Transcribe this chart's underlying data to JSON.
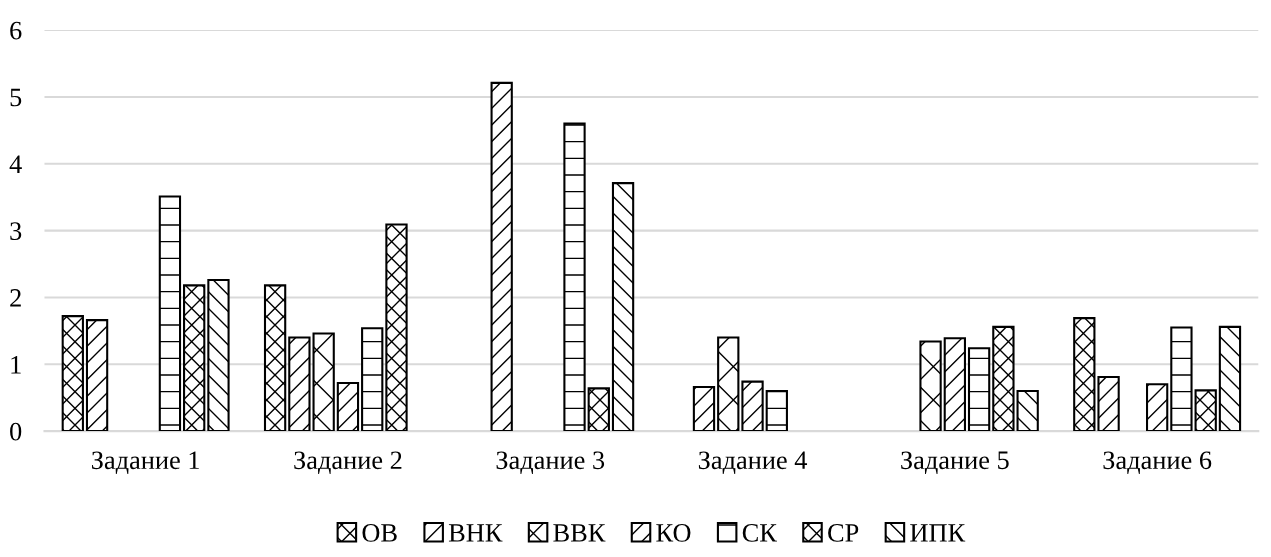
{
  "chart_data": {
    "type": "bar",
    "categories": [
      "Задание 1",
      "Задание 2",
      "Задание 3",
      "Задание 4",
      "Задание 5",
      "Задание 6"
    ],
    "series": [
      {
        "name": "ОВ",
        "color": "#000000",
        "values": [
          1.72,
          2.18,
          null,
          null,
          null,
          1.69
        ]
      },
      {
        "name": "ВНК",
        "color": "#000000",
        "values": [
          1.66,
          1.4,
          5.21,
          0.66,
          null,
          0.81
        ]
      },
      {
        "name": "ВВК",
        "color": "#000000",
        "values": [
          null,
          1.46,
          null,
          1.4,
          1.34,
          null
        ]
      },
      {
        "name": "КО",
        "color": "#000000",
        "values": [
          null,
          0.72,
          null,
          0.74,
          1.39,
          0.7
        ]
      },
      {
        "name": "СК",
        "color": "#000000",
        "values": [
          3.51,
          1.54,
          4.6,
          0.6,
          1.24,
          1.55
        ]
      },
      {
        "name": "СР",
        "color": "#000000",
        "values": [
          2.18,
          3.09,
          0.64,
          null,
          1.56,
          0.61
        ]
      },
      {
        "name": "ИПК",
        "color": "#000000",
        "values": [
          2.26,
          null,
          3.71,
          null,
          0.6,
          1.56
        ]
      }
    ],
    "ylim": [
      0,
      6
    ],
    "yticks": [
      0,
      1,
      2,
      3,
      4,
      5,
      6
    ],
    "grid": "y",
    "legend": "bottom"
  }
}
